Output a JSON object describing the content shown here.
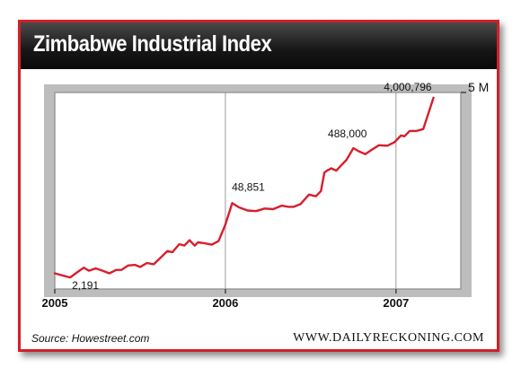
{
  "header": {
    "title": "Zimbabwe Industrial Index"
  },
  "footer": {
    "source": "Source: Howestreet.com",
    "brand": "WWW.DAILYRECKONING.COM"
  },
  "colors": {
    "line": "#d81e2c",
    "frame_border": "#d0202a",
    "plot_border": "#999999",
    "plot_bg": "#ffffff",
    "header_bg": "#111111"
  },
  "chart_data": {
    "type": "line",
    "title": "Zimbabwe Industrial Index",
    "xlabel": "",
    "ylabel": "",
    "x_range": [
      2005.0,
      2007.38
    ],
    "y_range_log10": [
      3.13,
      6.699
    ],
    "y_scale": "log",
    "grid": "vertical",
    "x_ticks": [
      {
        "value": 2005,
        "label": "2005"
      },
      {
        "value": 2006,
        "label": "2006"
      },
      {
        "value": 2007,
        "label": "2007"
      }
    ],
    "y_ticks": [
      {
        "value": 5000000,
        "label": "5 M"
      }
    ],
    "annotations": [
      {
        "label": "2,191",
        "x": 2005.09,
        "y": 2191
      },
      {
        "label": "48,851",
        "x": 2006.08,
        "y": 48851
      },
      {
        "label": "488,000",
        "x": 2006.78,
        "y": 488000
      },
      {
        "label": "4,000,796",
        "x": 2007.22,
        "y": 4000796
      }
    ],
    "series": [
      {
        "x": [
          2005.0,
          2005.04,
          2005.09,
          2005.13,
          2005.17,
          2005.2,
          2005.24,
          2005.28,
          2005.32,
          2005.36,
          2005.39,
          2005.43,
          2005.47,
          2005.5,
          2005.54,
          2005.58,
          2005.62,
          2005.66,
          2005.69,
          2005.73,
          2005.76,
          2005.79,
          2005.82,
          2005.84,
          2005.86,
          2005.88,
          2005.92,
          2005.96,
          2006.0,
          2006.04,
          2006.08,
          2006.13,
          2006.18,
          2006.23,
          2006.28,
          2006.33,
          2006.37,
          2006.4,
          2006.44,
          2006.49,
          2006.53,
          2006.56,
          2006.58,
          2006.6,
          2006.61,
          2006.62,
          2006.65,
          2006.68,
          2006.71,
          2006.75,
          2006.78,
          2006.82,
          2006.86,
          2006.9,
          2006.95,
          2006.99,
          2007.03,
          2007.05,
          2007.08,
          2007.12,
          2007.16,
          2007.22
        ],
        "y": [
          2600,
          2400,
          2191,
          2700,
          3300,
          2900,
          3200,
          2900,
          2600,
          3000,
          3000,
          3600,
          3700,
          3400,
          4000,
          3800,
          5000,
          6600,
          6300,
          8800,
          8300,
          10400,
          8300,
          9500,
          9300,
          9100,
          8600,
          10000,
          20000,
          48851,
          41000,
          36000,
          35000,
          39000,
          38000,
          44000,
          42000,
          42000,
          47000,
          70000,
          65000,
          81000,
          175000,
          195000,
          200000,
          210000,
          190000,
          240000,
          300000,
          488000,
          430000,
          380000,
          460000,
          550000,
          540000,
          620000,
          830000,
          800000,
          1000000,
          1000000,
          1080000,
          4000796
        ]
      }
    ]
  }
}
